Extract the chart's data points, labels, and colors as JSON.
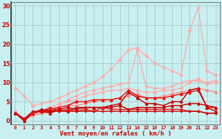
{
  "background_color": "#c8f0f0",
  "grid_color": "#a8c8c8",
  "xlabel": "Vent moyen/en rafales ( km/h )",
  "xlabel_color": "#cc0000",
  "tick_color": "#cc0000",
  "xlim": [
    -0.5,
    23.5
  ],
  "ylim": [
    -1,
    31
  ],
  "yticks": [
    0,
    5,
    10,
    15,
    20,
    25,
    30
  ],
  "xticks": [
    0,
    1,
    2,
    3,
    4,
    5,
    6,
    7,
    8,
    9,
    10,
    11,
    12,
    13,
    14,
    15,
    16,
    17,
    18,
    19,
    20,
    21,
    22,
    23
  ],
  "series": [
    {
      "x": [
        0,
        1,
        2,
        3,
        4,
        5,
        6,
        7,
        8,
        9,
        10,
        11,
        12,
        13,
        14,
        15,
        16,
        17,
        18,
        19,
        20,
        21,
        22,
        23
      ],
      "y": [
        8.5,
        6.5,
        4.0,
        4.5,
        5.0,
        6.0,
        7.0,
        8.0,
        9.0,
        10.0,
        11.5,
        13.5,
        16.0,
        18.5,
        19.0,
        17.0,
        15.0,
        14.0,
        13.0,
        12.0,
        23.5,
        29.5,
        13.0,
        12.0
      ],
      "color": "#ffaaaa",
      "lw": 1.0,
      "marker": "D",
      "ms": 2.0
    },
    {
      "x": [
        0,
        1,
        2,
        3,
        4,
        5,
        6,
        7,
        8,
        9,
        10,
        11,
        12,
        13,
        14,
        15,
        16,
        17,
        18,
        19,
        20,
        21,
        22,
        23
      ],
      "y": [
        2.5,
        0.5,
        1.5,
        2.0,
        3.5,
        4.5,
        5.5,
        6.5,
        7.5,
        8.0,
        8.5,
        9.0,
        9.5,
        10.0,
        18.5,
        9.0,
        8.5,
        8.5,
        9.0,
        10.0,
        10.5,
        10.5,
        10.0,
        10.5
      ],
      "color": "#ffaaaa",
      "lw": 1.0,
      "marker": "D",
      "ms": 2.0
    },
    {
      "x": [
        0,
        1,
        2,
        3,
        4,
        5,
        6,
        7,
        8,
        9,
        10,
        11,
        12,
        13,
        14,
        15,
        16,
        17,
        18,
        19,
        20,
        21,
        22,
        23
      ],
      "y": [
        2.0,
        0.0,
        1.5,
        2.0,
        3.0,
        4.0,
        5.0,
        5.5,
        6.5,
        7.0,
        7.5,
        8.0,
        8.0,
        8.5,
        8.0,
        7.5,
        7.5,
        8.0,
        8.0,
        8.5,
        10.0,
        11.0,
        9.5,
        10.0
      ],
      "color": "#ffaaaa",
      "lw": 1.0,
      "marker": "D",
      "ms": 2.0
    },
    {
      "x": [
        0,
        1,
        2,
        3,
        4,
        5,
        6,
        7,
        8,
        9,
        10,
        11,
        12,
        13,
        14,
        15,
        16,
        17,
        18,
        19,
        20,
        21,
        22,
        23
      ],
      "y": [
        2.0,
        0.5,
        1.5,
        2.0,
        2.5,
        3.5,
        4.0,
        4.0,
        4.5,
        5.0,
        5.5,
        5.5,
        6.0,
        6.5,
        7.0,
        6.0,
        6.0,
        6.5,
        7.0,
        7.5,
        8.0,
        8.5,
        8.0,
        7.5
      ],
      "color": "#ff8888",
      "lw": 1.0,
      "marker": "D",
      "ms": 2.0
    },
    {
      "x": [
        0,
        1,
        2,
        3,
        4,
        5,
        6,
        7,
        8,
        9,
        10,
        11,
        12,
        13,
        14,
        15,
        16,
        17,
        18,
        19,
        20,
        21,
        22,
        23
      ],
      "y": [
        2.0,
        0.5,
        2.0,
        2.5,
        3.0,
        3.5,
        4.0,
        5.0,
        5.0,
        5.5,
        5.5,
        5.5,
        6.0,
        8.0,
        6.5,
        6.0,
        6.0,
        6.0,
        6.5,
        7.0,
        7.5,
        8.0,
        3.5,
        3.5
      ],
      "color": "#ee1111",
      "lw": 1.1,
      "marker": "^",
      "ms": 2.5
    },
    {
      "x": [
        0,
        1,
        2,
        3,
        4,
        5,
        6,
        7,
        8,
        9,
        10,
        11,
        12,
        13,
        14,
        15,
        16,
        17,
        18,
        19,
        20,
        21,
        22,
        23
      ],
      "y": [
        2.0,
        0.5,
        2.0,
        3.0,
        2.5,
        3.0,
        3.5,
        3.0,
        3.5,
        3.5,
        3.5,
        4.0,
        4.5,
        7.5,
        6.0,
        4.5,
        4.5,
        4.0,
        5.0,
        5.0,
        8.0,
        8.5,
        3.5,
        2.5
      ],
      "color": "#cc0000",
      "lw": 1.1,
      "marker": "^",
      "ms": 2.5
    },
    {
      "x": [
        0,
        1,
        2,
        3,
        4,
        5,
        6,
        7,
        8,
        9,
        10,
        11,
        12,
        13,
        14,
        15,
        16,
        17,
        18,
        19,
        20,
        21,
        22,
        23
      ],
      "y": [
        2.0,
        0.0,
        2.0,
        2.5,
        2.0,
        3.0,
        2.5,
        3.5,
        3.5,
        3.5,
        3.5,
        3.5,
        4.0,
        3.0,
        3.5,
        3.5,
        3.5,
        3.5,
        4.0,
        4.0,
        4.5,
        4.5,
        4.0,
        3.5
      ],
      "color": "#cc0000",
      "lw": 1.1,
      "marker": "^",
      "ms": 2.5
    },
    {
      "x": [
        0,
        1,
        2,
        3,
        4,
        5,
        6,
        7,
        8,
        9,
        10,
        11,
        12,
        13,
        14,
        15,
        16,
        17,
        18,
        19,
        20,
        21,
        22,
        23
      ],
      "y": [
        2.0,
        0.5,
        2.0,
        2.5,
        3.5,
        2.5,
        3.0,
        2.5,
        3.0,
        2.5,
        3.5,
        3.0,
        3.0,
        3.0,
        3.0,
        3.0,
        3.0,
        3.0,
        3.0,
        3.0,
        2.5,
        2.5,
        2.0,
        2.0
      ],
      "color": "#dd2222",
      "lw": 1.1,
      "marker": "s",
      "ms": 2.0
    },
    {
      "x": [
        0,
        1,
        2,
        3,
        4,
        5,
        6,
        7,
        8,
        9,
        10,
        11,
        12,
        13,
        14,
        15,
        16,
        17,
        18,
        19,
        20,
        21,
        22,
        23
      ],
      "y": [
        2.0,
        0.5,
        2.5,
        2.5,
        2.5,
        2.5,
        2.5,
        2.5,
        2.5,
        2.5,
        2.5,
        2.5,
        2.5,
        2.5,
        2.5,
        2.5,
        2.5,
        2.5,
        2.5,
        2.5,
        2.5,
        2.5,
        2.0,
        2.0
      ],
      "color": "#cc0000",
      "lw": 1.0,
      "marker": "+",
      "ms": 3.0
    }
  ]
}
